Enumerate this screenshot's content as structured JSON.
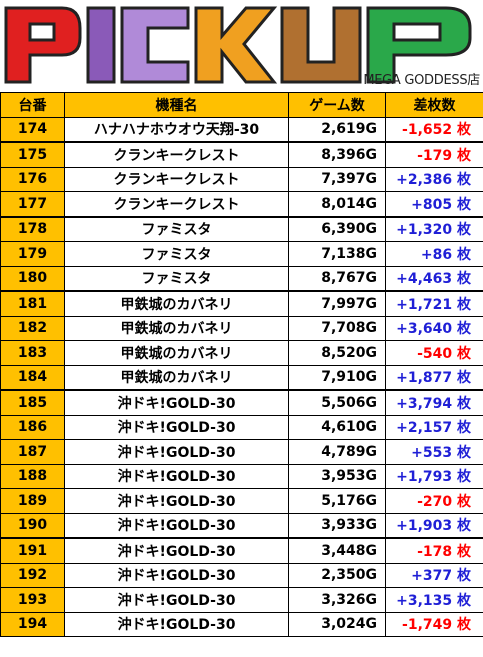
{
  "banner": {
    "title": "PICKUP",
    "store": "MEGA GODDESS店"
  },
  "colors": {
    "header_bg": "#ffc000",
    "positive": "#1f1fd6",
    "negative": "#ff0000"
  },
  "table": {
    "headers": [
      "台番",
      "機種名",
      "ゲーム数",
      "差枚数"
    ],
    "rows": [
      {
        "no": "174",
        "machine": "ハナハナホウオウ天翔-30",
        "games": "2,619G",
        "diff": "-1,652 枚",
        "sign": "neg"
      },
      {
        "no": "175",
        "machine": "クランキークレスト",
        "games": "8,396G",
        "diff": "-179 枚",
        "sign": "neg"
      },
      {
        "no": "176",
        "machine": "クランキークレスト",
        "games": "7,397G",
        "diff": "+2,386 枚",
        "sign": "pos"
      },
      {
        "no": "177",
        "machine": "クランキークレスト",
        "games": "8,014G",
        "diff": "+805 枚",
        "sign": "pos"
      },
      {
        "no": "178",
        "machine": "ファミスタ",
        "games": "6,390G",
        "diff": "+1,320 枚",
        "sign": "pos"
      },
      {
        "no": "179",
        "machine": "ファミスタ",
        "games": "7,138G",
        "diff": "+86 枚",
        "sign": "pos"
      },
      {
        "no": "180",
        "machine": "ファミスタ",
        "games": "8,767G",
        "diff": "+4,463 枚",
        "sign": "pos"
      },
      {
        "no": "181",
        "machine": "甲鉄城のカバネリ",
        "games": "7,997G",
        "diff": "+1,721 枚",
        "sign": "pos"
      },
      {
        "no": "182",
        "machine": "甲鉄城のカバネリ",
        "games": "7,708G",
        "diff": "+3,640 枚",
        "sign": "pos"
      },
      {
        "no": "183",
        "machine": "甲鉄城のカバネリ",
        "games": "8,520G",
        "diff": "-540 枚",
        "sign": "neg"
      },
      {
        "no": "184",
        "machine": "甲鉄城のカバネリ",
        "games": "7,910G",
        "diff": "+1,877 枚",
        "sign": "pos"
      },
      {
        "no": "185",
        "machine": "沖ドキ!GOLD-30",
        "games": "5,506G",
        "diff": "+3,794 枚",
        "sign": "pos"
      },
      {
        "no": "186",
        "machine": "沖ドキ!GOLD-30",
        "games": "4,610G",
        "diff": "+2,157 枚",
        "sign": "pos"
      },
      {
        "no": "187",
        "machine": "沖ドキ!GOLD-30",
        "games": "4,789G",
        "diff": "+553 枚",
        "sign": "pos"
      },
      {
        "no": "188",
        "machine": "沖ドキ!GOLD-30",
        "games": "3,953G",
        "diff": "+1,793 枚",
        "sign": "pos"
      },
      {
        "no": "189",
        "machine": "沖ドキ!GOLD-30",
        "games": "5,176G",
        "diff": "-270 枚",
        "sign": "neg"
      },
      {
        "no": "190",
        "machine": "沖ドキ!GOLD-30",
        "games": "3,933G",
        "diff": "+1,903 枚",
        "sign": "pos"
      },
      {
        "no": "191",
        "machine": "沖ドキ!GOLD-30",
        "games": "3,448G",
        "diff": "-178 枚",
        "sign": "neg"
      },
      {
        "no": "192",
        "machine": "沖ドキ!GOLD-30",
        "games": "2,350G",
        "diff": "+377 枚",
        "sign": "pos"
      },
      {
        "no": "193",
        "machine": "沖ドキ!GOLD-30",
        "games": "3,326G",
        "diff": "+3,135 枚",
        "sign": "pos"
      },
      {
        "no": "194",
        "machine": "沖ドキ!GOLD-30",
        "games": "3,024G",
        "diff": "-1,749 枚",
        "sign": "neg"
      }
    ]
  }
}
